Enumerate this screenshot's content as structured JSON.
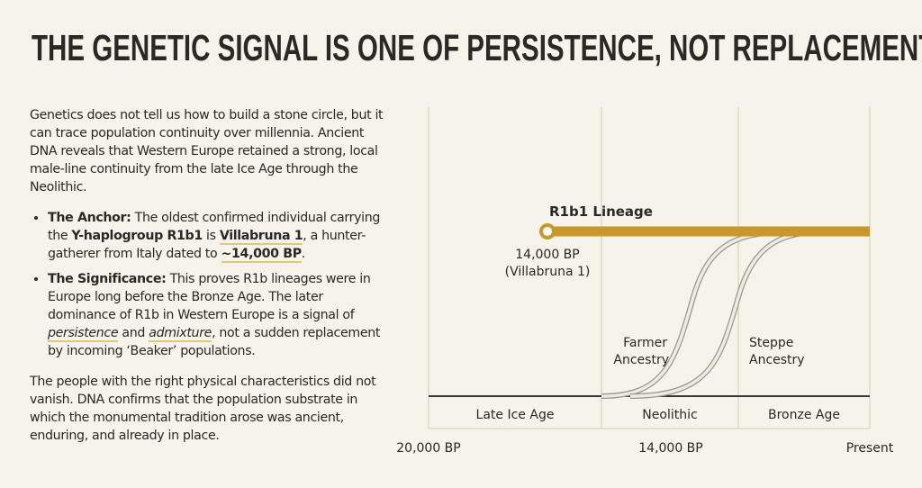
{
  "title": "THE GENETIC SIGNAL IS ONE OF PERSISTENCE, NOT REPLACEMENT.",
  "intro": "Genetics does not tell us how to build a stone circle, but it can trace population continuity over millennia. Ancient DNA reveals that Western Europe retained a strong, local male-line continuity from the late Ice Age through the Neolithic.",
  "bullets": [
    {
      "label": "The Anchor:",
      "t1": " The oldest confirmed individual carrying the ",
      "b1": "Y-haplogroup R1b1",
      "t2": " is ",
      "u1": "Villabruna 1",
      "t3": ", a hunter-gatherer from Italy dated to ",
      "u2": "~14,000 BP",
      "t4": "."
    },
    {
      "label": "The Significance:",
      "t1": " This proves R1b lineages were in Europe long before the Bronze Age. The later dominance of R1b in Western Europe is a signal of ",
      "i1": "persistence",
      "t2": " and ",
      "i2": "admixture",
      "t3": ", not a sudden replacement by incoming ‘Beaker’ populations."
    }
  ],
  "conclusion": "The people with the right physical characteristics did not vanish. DNA confirms that the population substrate in which the monumental tradition arose was ancient, enduring, and already in place.",
  "diagram": {
    "lineage_label": "R1b1 Lineage",
    "origin_date": "14,000 BP",
    "origin_name": "(Villabruna 1)",
    "farmer_1": "Farmer",
    "farmer_2": "Ancestry",
    "steppe_1": "Steppe",
    "steppe_2": "Ancestry",
    "periods": [
      "Late Ice Age",
      "Neolithic",
      "Bronze Age"
    ],
    "axis_ticks": [
      "20,000 BP",
      "14,000 BP",
      "Present"
    ],
    "colors": {
      "lineage": "#c9972a",
      "grid": "#cfcbc0",
      "baseline": "#3a3833"
    }
  }
}
